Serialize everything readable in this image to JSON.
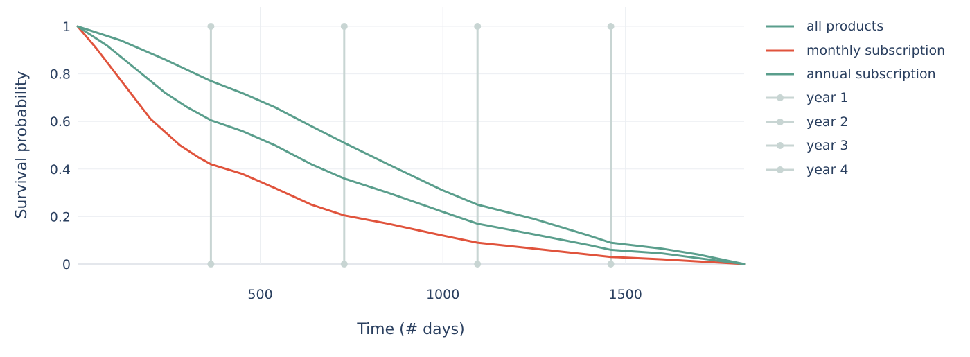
{
  "chart_data": {
    "type": "line",
    "title": "",
    "xlabel": "Time (# days)",
    "ylabel": "Survival probability",
    "xlim": [
      0,
      1825
    ],
    "ylim": [
      0,
      1
    ],
    "xticks": [
      500,
      1000,
      1500
    ],
    "yticks": [
      0,
      0.2,
      0.4,
      0.6,
      0.8,
      1
    ],
    "ytick_labels": [
      "0",
      "0.2",
      "0.4",
      "0.6",
      "0.8",
      "1"
    ],
    "xtick_labels": [
      "500",
      "1000",
      "1500"
    ],
    "grid": true,
    "legend_position": "right",
    "series": [
      {
        "name": "all products",
        "color": "#5a9e8c",
        "x": [
          0,
          120,
          240,
          365,
          450,
          540,
          640,
          730,
          850,
          1000,
          1095,
          1250,
          1400,
          1460,
          1600,
          1700,
          1825
        ],
        "y": [
          1,
          0.94,
          0.86,
          0.77,
          0.72,
          0.66,
          0.58,
          0.51,
          0.42,
          0.31,
          0.25,
          0.19,
          0.12,
          0.09,
          0.065,
          0.04,
          0
        ]
      },
      {
        "name": "monthly subscription",
        "color": "#e0533c",
        "x": [
          0,
          50,
          120,
          200,
          280,
          330,
          365,
          450,
          540,
          640,
          730,
          850,
          1000,
          1095,
          1250,
          1460,
          1600,
          1825
        ],
        "y": [
          1,
          0.91,
          0.77,
          0.61,
          0.5,
          0.45,
          0.42,
          0.38,
          0.32,
          0.25,
          0.205,
          0.17,
          0.12,
          0.09,
          0.065,
          0.03,
          0.02,
          0
        ]
      },
      {
        "name": "annual subscription",
        "color": "#5a9e8c",
        "x": [
          0,
          80,
          160,
          240,
          300,
          365,
          450,
          540,
          640,
          730,
          850,
          1000,
          1095,
          1250,
          1400,
          1460,
          1600,
          1825
        ],
        "y": [
          1,
          0.92,
          0.82,
          0.72,
          0.66,
          0.605,
          0.56,
          0.5,
          0.42,
          0.36,
          0.3,
          0.22,
          0.17,
          0.125,
          0.08,
          0.06,
          0.045,
          0
        ]
      },
      {
        "name": "year 1",
        "color": "#c8d5d3",
        "x": [
          365,
          365
        ],
        "y": [
          0,
          1
        ]
      },
      {
        "name": "year 2",
        "color": "#c8d5d3",
        "x": [
          730,
          730
        ],
        "y": [
          0,
          1
        ]
      },
      {
        "name": "year 3",
        "color": "#c8d5d3",
        "x": [
          1095,
          1095
        ],
        "y": [
          0,
          1
        ]
      },
      {
        "name": "year 4",
        "color": "#c8d5d3",
        "x": [
          1460,
          1460
        ],
        "y": [
          0,
          1
        ]
      }
    ]
  }
}
